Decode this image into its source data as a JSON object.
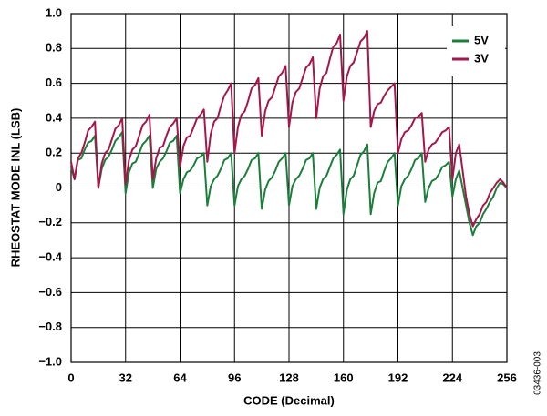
{
  "chart_data": {
    "type": "line",
    "xlabel": "CODE (Decimal)",
    "ylabel": "RHEOSTAT MODE INL (LSB)",
    "annotation": "03436-003",
    "grid": true,
    "legend": "upper right",
    "xlim": [
      0,
      256
    ],
    "xticks": [
      0,
      32,
      64,
      96,
      128,
      160,
      192,
      224,
      256
    ],
    "ylim": [
      -1,
      1
    ],
    "yticks": [
      {
        "value": 1,
        "label": "1.0"
      },
      0.8,
      0.6,
      0.4,
      0.2,
      0,
      {
        "value": -0.2,
        "label": "−0.2"
      },
      {
        "value": -0.4,
        "label": "−0.4"
      },
      {
        "value": -0.6,
        "label": "−0.6"
      },
      {
        "value": -0.8,
        "label": "−0.8"
      },
      {
        "value": -1,
        "label": "−1.0"
      }
    ],
    "x": [
      0,
      2,
      4,
      6,
      8,
      10,
      12,
      14,
      16,
      18,
      20,
      22,
      24,
      26,
      28,
      30,
      32,
      34,
      36,
      38,
      40,
      42,
      44,
      46,
      48,
      50,
      52,
      54,
      56,
      58,
      60,
      62,
      64,
      66,
      68,
      70,
      72,
      74,
      76,
      78,
      80,
      82,
      84,
      86,
      88,
      90,
      92,
      94,
      96,
      98,
      100,
      102,
      104,
      106,
      108,
      110,
      112,
      114,
      116,
      118,
      120,
      122,
      124,
      126,
      128,
      130,
      132,
      134,
      136,
      138,
      140,
      142,
      144,
      146,
      148,
      150,
      152,
      154,
      156,
      158,
      160,
      162,
      164,
      166,
      168,
      170,
      172,
      174,
      176,
      178,
      180,
      182,
      184,
      186,
      188,
      190,
      192,
      194,
      196,
      198,
      200,
      202,
      204,
      206,
      208,
      210,
      212,
      214,
      216,
      218,
      220,
      222,
      224,
      226,
      228,
      230,
      232,
      234,
      236,
      238,
      240,
      242,
      244,
      246,
      248,
      250,
      252,
      254,
      256
    ],
    "series": [
      {
        "name": "5V",
        "color": "#1b7f3b",
        "values": [
          0.12,
          0.05,
          0.16,
          0.17,
          0.22,
          0.26,
          0.27,
          0.3,
          0,
          0.11,
          0.16,
          0.18,
          0.22,
          0.27,
          0.29,
          0.32,
          -0.03,
          0.09,
          0.14,
          0.15,
          0.2,
          0.25,
          0.27,
          0.3,
          0,
          0.11,
          0.15,
          0.17,
          0.21,
          0.26,
          0.27,
          0.3,
          -0.03,
          0.05,
          0.09,
          0.1,
          0.13,
          0.17,
          0.18,
          0.2,
          -0.1,
          0.01,
          0.05,
          0.07,
          0.11,
          0.16,
          0.17,
          0.2,
          -0.1,
          0.01,
          0.05,
          0.07,
          0.11,
          0.16,
          0.17,
          0.2,
          -0.12,
          -0.01,
          0.04,
          0.06,
          0.1,
          0.15,
          0.17,
          0.2,
          -0.1,
          0.01,
          0.05,
          0.07,
          0.11,
          0.16,
          0.17,
          0.2,
          -0.12,
          0,
          0.05,
          0.07,
          0.12,
          0.17,
          0.19,
          0.22,
          -0.15,
          -0.01,
          0.05,
          0.07,
          0.13,
          0.19,
          0.21,
          0.25,
          -0.15,
          -0.03,
          0.03,
          0.04,
          0.1,
          0.15,
          0.17,
          0.2,
          -0.1,
          0.01,
          0.05,
          0.07,
          0.11,
          0.16,
          0.17,
          0.2,
          -0.08,
          0,
          0.04,
          0.05,
          0.08,
          0.12,
          0.13,
          0.15,
          -0.05,
          0.05,
          0.1,
          0,
          -0.1,
          -0.2,
          -0.27,
          -0.22,
          -0.2,
          -0.15,
          -0.12,
          -0.08,
          -0.05,
          0,
          0.03,
          0.02,
          0
        ]
      },
      {
        "name": "3V",
        "color": "#a5164a",
        "values": [
          0.15,
          0.05,
          0.17,
          0.2,
          0.26,
          0.33,
          0.35,
          0.38,
          0,
          0.14,
          0.2,
          0.22,
          0.28,
          0.34,
          0.36,
          0.4,
          0.02,
          0.16,
          0.22,
          0.24,
          0.3,
          0.36,
          0.38,
          0.42,
          0.05,
          0.17,
          0.23,
          0.24,
          0.3,
          0.35,
          0.37,
          0.4,
          0.12,
          0.24,
          0.29,
          0.3,
          0.35,
          0.4,
          0.42,
          0.45,
          0.15,
          0.31,
          0.38,
          0.4,
          0.47,
          0.53,
          0.56,
          0.6,
          0.2,
          0.35,
          0.42,
          0.44,
          0.5,
          0.57,
          0.59,
          0.63,
          0.3,
          0.44,
          0.5,
          0.52,
          0.58,
          0.64,
          0.66,
          0.7,
          0.35,
          0.49,
          0.55,
          0.57,
          0.63,
          0.69,
          0.71,
          0.75,
          0.4,
          0.57,
          0.64,
          0.66,
          0.74,
          0.81,
          0.83,
          0.88,
          0.5,
          0.64,
          0.7,
          0.72,
          0.78,
          0.84,
          0.86,
          0.9,
          0.35,
          0.44,
          0.48,
          0.49,
          0.53,
          0.56,
          0.58,
          0.6,
          0.2,
          0.28,
          0.32,
          0.33,
          0.36,
          0.4,
          0.41,
          0.43,
          0.15,
          0.22,
          0.25,
          0.26,
          0.29,
          0.32,
          0.33,
          0.35,
          0.05,
          0.2,
          0.25,
          0.1,
          -0.05,
          -0.15,
          -0.22,
          -0.18,
          -0.15,
          -0.1,
          -0.08,
          -0.03,
          0,
          0.03,
          0.05,
          0.03,
          0
        ]
      }
    ]
  }
}
